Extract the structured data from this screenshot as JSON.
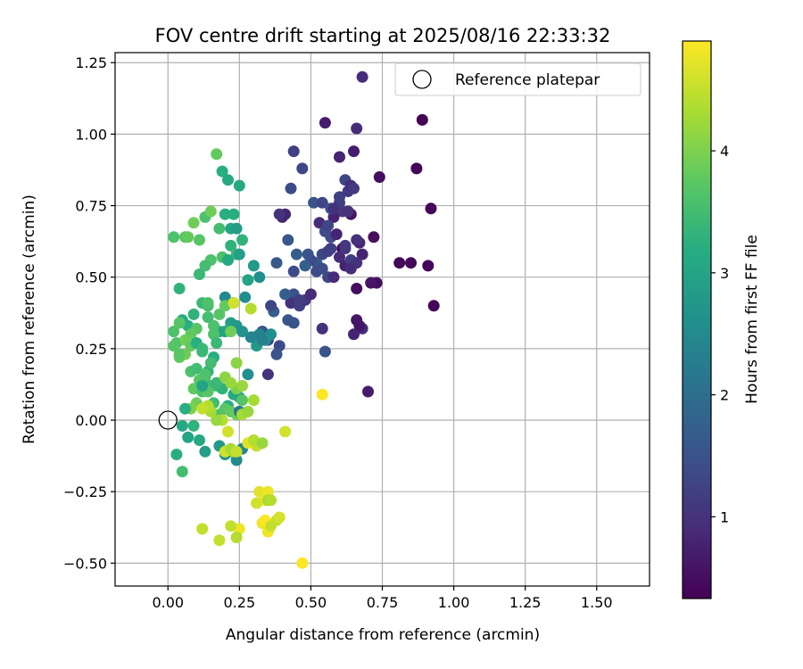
{
  "chart_data": {
    "type": "scatter",
    "title": "FOV centre drift starting at 2025/08/16 22:33:32",
    "xlabel": "Angular distance from reference (arcmin)",
    "ylabel": "Rotation from reference (arcmin)",
    "xlim": [
      -0.185,
      1.685
    ],
    "ylim": [
      -0.58,
      1.285
    ],
    "xticks": [
      0.0,
      0.25,
      0.5,
      0.75,
      1.0,
      1.25,
      1.5
    ],
    "xtick_labels": [
      "0.00",
      "0.25",
      "0.50",
      "0.75",
      "1.00",
      "1.25",
      "1.50"
    ],
    "yticks": [
      -0.5,
      -0.25,
      0.0,
      0.25,
      0.5,
      0.75,
      1.0,
      1.25
    ],
    "ytick_labels": [
      "−0.50",
      "−0.25",
      "0.00",
      "0.25",
      "0.50",
      "0.75",
      "1.00",
      "1.25"
    ],
    "grid": true,
    "legend": {
      "position": "top-right",
      "entries": [
        "Reference platepar"
      ]
    },
    "reference_point": {
      "x": 0.0,
      "y": 0.0,
      "label": "Reference platepar"
    },
    "colorbar": {
      "label": "Hours from first FF file",
      "colormap": "viridis",
      "range": [
        0.33,
        4.9
      ],
      "ticks": [
        1,
        2,
        3,
        4
      ],
      "tick_labels": [
        "1",
        "2",
        "3",
        "4"
      ]
    },
    "colormap_stops": [
      "#440154",
      "#472c7a",
      "#3b518b",
      "#2c718e",
      "#21908d",
      "#27ad81",
      "#5cc863",
      "#aadc32",
      "#fde725"
    ],
    "series": [
      {
        "x": [
          0.68,
          0.55,
          0.89,
          0.92,
          0.87,
          0.74,
          0.93,
          0.81,
          0.85,
          0.91,
          0.68,
          0.61,
          0.66,
          0.7,
          0.67,
          0.64,
          0.72,
          0.73,
          0.71,
          0.66,
          0.65,
          0.68
        ],
        "hours": [
          0.9,
          0.7,
          0.35,
          0.4,
          0.4,
          0.5,
          0.4,
          0.4,
          0.4,
          0.4,
          0.9,
          0.5,
          0.5,
          0.7,
          0.6,
          0.6,
          0.5,
          0.5,
          0.6,
          0.6,
          0.8,
          0.8
        ],
        "y": [
          1.2,
          1.04,
          1.05,
          0.74,
          0.88,
          0.85,
          0.4,
          0.55,
          0.55,
          0.54,
          0.32,
          0.6,
          0.46,
          0.1,
          0.33,
          0.72,
          0.64,
          0.48,
          0.48,
          0.35,
          0.3,
          0.58
        ]
      },
      {
        "x": [
          0.44,
          0.47,
          0.43,
          0.51,
          0.54,
          0.53,
          0.61,
          0.58,
          0.63,
          0.55,
          0.62,
          0.6,
          0.66,
          0.65,
          0.63,
          0.64,
          0.65,
          0.6,
          0.56,
          0.57,
          0.59,
          0.57,
          0.57,
          0.54,
          0.52,
          0.5,
          0.48,
          0.49,
          0.45,
          0.44,
          0.42,
          0.41,
          0.4,
          0.39,
          0.38,
          0.37,
          0.36,
          0.44,
          0.43,
          0.46,
          0.48,
          0.5,
          0.52,
          0.54,
          0.56,
          0.58,
          0.62,
          0.64,
          0.66,
          0.62,
          0.6,
          0.56,
          0.54,
          0.55,
          0.33,
          0.31,
          0.35,
          0.39,
          0.38,
          0.42,
          0.44,
          0.41,
          0.46,
          0.58,
          0.6,
          0.62,
          0.64,
          0.67,
          0.66,
          0.35
        ],
        "hours": [
          1.2,
          1.3,
          1.4,
          1.5,
          1.3,
          0.9,
          1.1,
          0.8,
          1.0,
          1.4,
          1.3,
          0.8,
          0.9,
          0.7,
          1.1,
          0.9,
          1.1,
          1.2,
          1.3,
          1.4,
          0.8,
          1.5,
          1.2,
          1.3,
          1.6,
          1.4,
          1.7,
          1.5,
          1.7,
          1.4,
          1.6,
          0.8,
          0.8,
          1.0,
          1.6,
          1.7,
          1.3,
          1.5,
          1.0,
          1.2,
          1.1,
          0.9,
          1.4,
          1.0,
          1.3,
          0.9,
          0.8,
          1.2,
          1.0,
          1.1,
          0.9,
          1.2,
          1.4,
          1.5,
          1.5,
          1.2,
          1.3,
          1.4,
          1.5,
          1.6,
          1.5,
          1.7,
          1.2,
          1.0,
          1.2,
          1.1,
          0.9,
          0.8,
          1.0,
          1.0
        ],
        "y": [
          0.94,
          0.88,
          0.81,
          0.76,
          0.76,
          0.69,
          0.73,
          0.71,
          0.73,
          0.66,
          0.84,
          0.92,
          1.02,
          0.94,
          0.8,
          0.82,
          0.81,
          0.76,
          0.68,
          0.64,
          0.65,
          0.74,
          0.6,
          0.58,
          0.55,
          0.56,
          0.54,
          0.58,
          0.58,
          0.52,
          0.63,
          0.72,
          0.71,
          0.72,
          0.55,
          0.38,
          0.4,
          0.44,
          0.41,
          0.4,
          0.42,
          0.44,
          0.52,
          0.32,
          0.5,
          0.5,
          0.54,
          0.56,
          0.55,
          0.61,
          0.57,
          0.59,
          0.53,
          0.24,
          0.31,
          0.29,
          0.28,
          0.26,
          0.23,
          0.35,
          0.34,
          0.44,
          0.42,
          0.74,
          0.78,
          0.6,
          0.53,
          0.62,
          0.63,
          0.16
        ]
      },
      {
        "x": [
          0.02,
          0.06,
          0.04,
          0.07,
          0.09,
          0.11,
          0.13,
          0.15,
          0.17,
          0.19,
          0.21,
          0.23,
          0.2,
          0.22,
          0.18,
          0.25,
          0.24,
          0.26,
          0.28,
          0.3,
          0.32,
          0.22,
          0.24,
          0.19,
          0.21,
          0.25,
          0.2,
          0.27,
          0.3,
          0.32,
          0.34,
          0.36,
          0.31,
          0.29,
          0.33,
          0.15,
          0.13,
          0.11,
          0.09,
          0.07,
          0.05,
          0.03,
          0.02,
          0.04,
          0.06,
          0.08,
          0.1,
          0.12,
          0.14,
          0.16,
          0.18,
          0.2,
          0.22,
          0.24,
          0.26,
          0.28,
          0.12,
          0.14,
          0.16,
          0.1,
          0.08,
          0.06,
          0.04,
          0.13,
          0.15,
          0.17,
          0.19,
          0.21,
          0.23,
          0.25,
          0.09,
          0.11,
          0.13,
          0.15,
          0.17,
          0.12,
          0.14,
          0.1,
          0.08,
          0.06,
          0.05,
          0.07,
          0.09,
          0.03,
          0.11,
          0.13,
          0.18,
          0.2,
          0.22,
          0.24,
          0.26,
          0.16,
          0.18,
          0.2,
          0.22,
          0.24,
          0.26,
          0.05,
          0.02,
          0.04,
          0.08,
          0.1,
          0.12,
          0.14,
          0.16,
          0.18,
          0.2,
          0.22,
          0.24,
          0.12,
          0.23,
          0.17,
          0.14,
          0.25
        ],
        "hours": [
          3.6,
          3.7,
          3.3,
          3.8,
          3.9,
          3.7,
          3.6,
          3.9,
          3.8,
          3.2,
          3.1,
          3.2,
          3.2,
          3.0,
          3.5,
          3.1,
          2.9,
          3.3,
          3.0,
          2.8,
          2.6,
          3.3,
          3.4,
          3.6,
          3.1,
          2.9,
          2.5,
          2.6,
          2.5,
          2.4,
          2.7,
          2.6,
          2.8,
          2.4,
          2.3,
          3.6,
          3.5,
          3.4,
          3.3,
          3.2,
          3.1,
          3.6,
          3.7,
          3.8,
          3.9,
          3.6,
          3.5,
          3.4,
          3.3,
          3.2,
          3.1,
          3.0,
          2.9,
          2.8,
          2.7,
          2.6,
          3.4,
          3.5,
          3.6,
          3.7,
          3.8,
          3.9,
          3.7,
          3.6,
          3.5,
          3.4,
          3.3,
          3.2,
          3.1,
          3.0,
          3.8,
          3.7,
          3.6,
          3.5,
          3.4,
          3.6,
          3.7,
          3.9,
          4.0,
          3.2,
          3.1,
          3.0,
          3.3,
          3.2,
          3.1,
          2.9,
          2.8,
          2.7,
          2.6,
          2.5,
          2.4,
          3.5,
          3.6,
          3.7,
          3.8,
          3.9,
          3.7,
          3.5,
          3.6,
          3.7,
          3.8,
          3.2,
          3.4,
          3.5,
          3.6,
          3.7,
          3.8,
          3.9,
          4.0,
          3.0,
          3.2,
          3.4,
          3.6,
          2.2
        ],
        "y": [
          0.64,
          0.64,
          0.46,
          0.64,
          0.69,
          0.63,
          0.71,
          0.73,
          0.93,
          0.87,
          0.84,
          0.72,
          0.72,
          0.67,
          0.67,
          0.82,
          0.67,
          0.63,
          0.49,
          0.54,
          0.5,
          0.61,
          0.58,
          0.57,
          0.56,
          0.58,
          0.43,
          0.43,
          0.29,
          0.3,
          0.28,
          0.3,
          0.26,
          0.29,
          0.28,
          0.56,
          0.54,
          0.51,
          0.37,
          0.33,
          0.35,
          0.27,
          0.26,
          0.22,
          0.23,
          0.17,
          0.18,
          0.24,
          0.17,
          0.22,
          0.31,
          0.31,
          0.34,
          0.33,
          0.31,
          0.16,
          0.41,
          0.4,
          0.33,
          0.32,
          0.3,
          0.28,
          0.23,
          0.15,
          0.12,
          0.12,
          0.11,
          0.05,
          0.09,
          0.08,
          0.11,
          0.14,
          0.16,
          0.2,
          0.13,
          0.1,
          0.1,
          0.06,
          0.04,
          0.04,
          -0.02,
          -0.06,
          -0.02,
          -0.12,
          -0.07,
          -0.11,
          -0.09,
          -0.12,
          -0.11,
          -0.14,
          -0.1,
          0.06,
          0.02,
          0.04,
          0.03,
          0.02,
          0.07,
          -0.18,
          0.31,
          0.34,
          0.26,
          0.27,
          0.25,
          0.36,
          0.3,
          0.37,
          0.4,
          0.31,
          0.11,
          0.12,
          0.41,
          0.27,
          0.41,
          0.03
        ]
      },
      {
        "x": [
          0.54,
          0.32,
          0.35,
          0.41,
          0.47,
          0.33,
          0.34,
          0.35,
          0.31,
          0.28,
          0.25,
          0.22,
          0.24,
          0.2,
          0.22,
          0.36,
          0.38,
          0.39,
          0.3,
          0.34,
          0.31,
          0.33,
          0.35,
          0.36,
          0.19,
          0.18,
          0.12,
          0.23,
          0.21,
          0.26,
          0.15,
          0.17,
          0.2,
          0.22,
          0.24,
          0.29,
          0.26,
          0.14,
          0.12,
          0.3,
          0.28,
          0.24,
          0.23
        ],
        "hours": [
          4.9,
          4.7,
          4.8,
          4.6,
          4.9,
          4.8,
          4.9,
          4.8,
          4.5,
          4.7,
          4.8,
          4.5,
          4.4,
          4.6,
          4.3,
          4.5,
          4.5,
          4.6,
          4.4,
          4.8,
          4.6,
          4.2,
          4.3,
          4.4,
          4.4,
          4.5,
          4.5,
          4.3,
          4.6,
          4.2,
          4.3,
          4.2,
          4.1,
          4.2,
          4.5,
          4.4,
          4.3,
          4.4,
          4.5,
          4.3,
          4.2,
          4.1,
          4.6
        ],
        "y": [
          0.09,
          -0.25,
          -0.25,
          -0.04,
          -0.5,
          -0.36,
          -0.35,
          -0.39,
          -0.09,
          -0.08,
          -0.38,
          -0.37,
          -0.41,
          -0.11,
          -0.1,
          -0.37,
          -0.35,
          -0.34,
          -0.07,
          -0.28,
          -0.29,
          -0.08,
          -0.28,
          -0.28,
          0.0,
          -0.42,
          -0.38,
          -0.11,
          -0.04,
          0.12,
          0.03,
          0.0,
          0.15,
          0.13,
          -0.11,
          0.39,
          0.02,
          0.05,
          0.04,
          0.07,
          0.03,
          0.2,
          0.41
        ]
      }
    ]
  }
}
